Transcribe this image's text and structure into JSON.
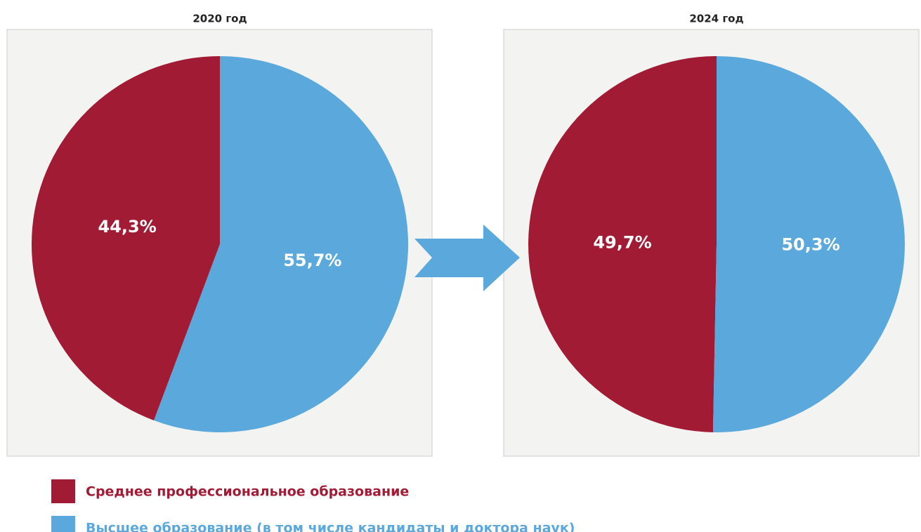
{
  "chart_data": [
    {
      "type": "pie",
      "title": "2020 год",
      "values": [
        44.3,
        55.7
      ],
      "value_labels": [
        "44,3%",
        "55,7%"
      ]
    },
    {
      "type": "pie",
      "title": "2024 год",
      "values": [
        49.7,
        50.3
      ],
      "value_labels": [
        "49,7%",
        "50,3%"
      ]
    }
  ],
  "legend": [
    {
      "name": "Среднее профессиональное образование",
      "color": "#a21b35"
    },
    {
      "name": "Высшее образование (в том числе кандидаты и доктора наук)",
      "color": "#5aa8dc"
    }
  ]
}
